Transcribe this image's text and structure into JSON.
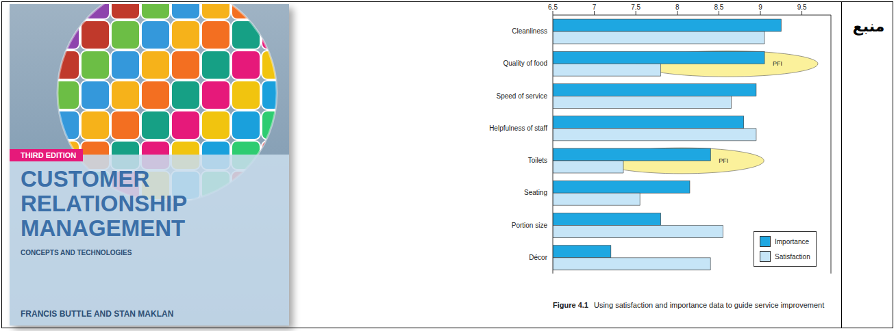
{
  "source_label": "منبع",
  "book": {
    "edition": "THIRD EDITION",
    "title": [
      "CUSTOMER",
      "RELATIONSHIP",
      "MANAGEMENT"
    ],
    "subtitle": "CONCEPTS AND TECHNOLOGIES",
    "authors": "FRANCIS BUTTLE AND STAN MAKLAN"
  },
  "figure": {
    "label": "Figure 4.1",
    "caption": "Using satisfaction and importance data to guide service improvement"
  },
  "chart_data": {
    "type": "bar",
    "orientation": "horizontal",
    "categories": [
      "Cleanliness",
      "Quality of food",
      "Speed of service",
      "Helpfulness of staff",
      "Toilets",
      "Seating",
      "Portion size",
      "Décor"
    ],
    "series": [
      {
        "name": "Importance",
        "color": "#1ea7e1",
        "values": [
          9.25,
          9.05,
          8.95,
          8.8,
          8.4,
          8.15,
          7.8,
          7.2
        ]
      },
      {
        "name": "Satisfaction",
        "color": "#c6e5f7",
        "values": [
          9.05,
          7.8,
          8.65,
          8.95,
          7.35,
          7.55,
          8.55,
          8.4
        ]
      }
    ],
    "xlim": [
      6.5,
      9.85
    ],
    "xticks": [
      6.5,
      7,
      7.5,
      8,
      8.5,
      9,
      9.5
    ],
    "grid": false,
    "legend": "lower right",
    "annotations": [
      {
        "category": "Quality of food",
        "text": "PFI"
      },
      {
        "category": "Toilets",
        "text": "PFI"
      }
    ]
  }
}
